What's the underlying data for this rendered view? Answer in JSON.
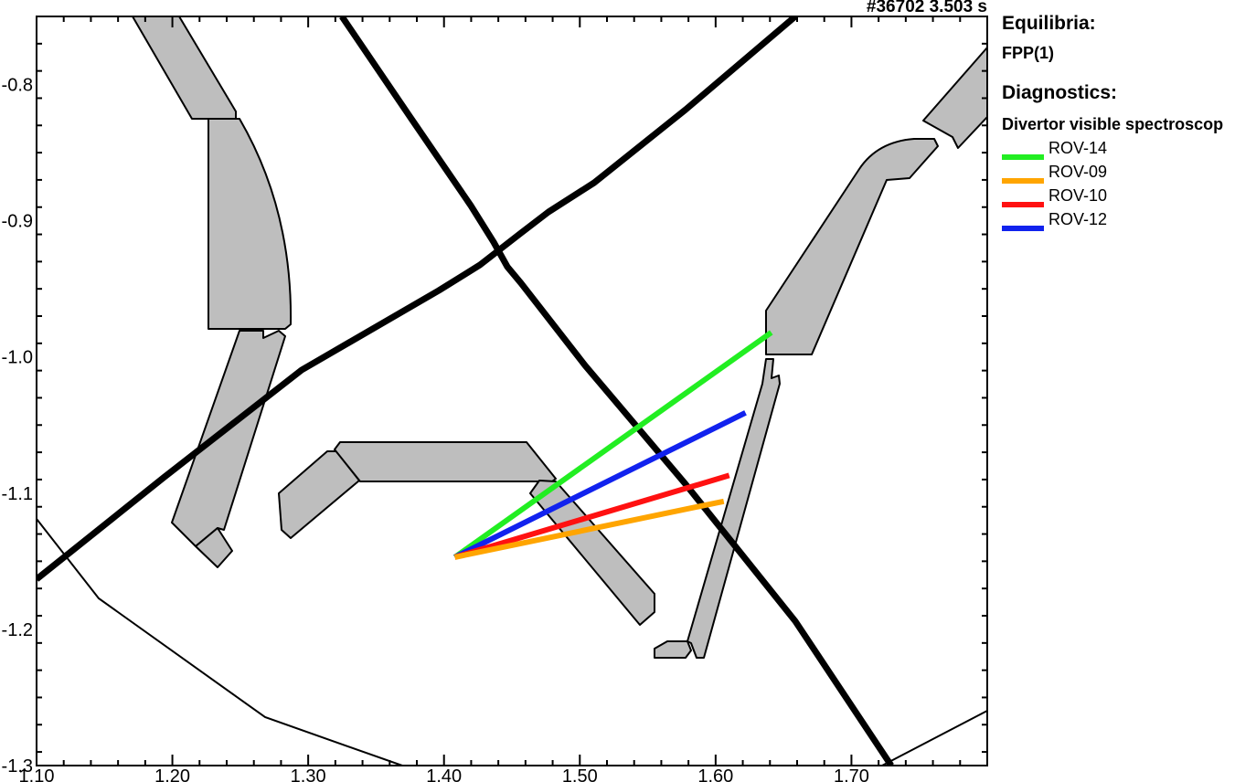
{
  "shot_label": "#36702 3.503 s",
  "legend": {
    "equilibria_heading": "Equilibria:",
    "equilibria_item": "FPP(1)",
    "diagnostics_heading": "Diagnostics:",
    "diagnostic_group": "Divertor visible spectroscop",
    "entries": [
      {
        "label": "ROV-14",
        "color": "#22ee22"
      },
      {
        "label": "ROV-09",
        "color": "#ffa500"
      },
      {
        "label": "ROV-10",
        "color": "#ff1111"
      },
      {
        "label": "ROV-12",
        "color": "#1122ee"
      }
    ]
  },
  "chart_data": {
    "type": "diagram",
    "xlim": [
      1.1,
      1.8
    ],
    "ylim": [
      -1.3,
      -0.75
    ],
    "x_ticks": [
      "1.10",
      "1.20",
      "1.30",
      "1.40",
      "1.50",
      "1.60",
      "1.70"
    ],
    "y_ticks": [
      "-0.8",
      "-0.9",
      "-1.0",
      "-1.1",
      "-1.2",
      "-1.3"
    ],
    "lines_of_sight": [
      {
        "name": "ROV-14",
        "color": "#22ee22",
        "points": [
          [
            1.408,
            -1.147
          ],
          [
            1.641,
            -0.982
          ]
        ]
      },
      {
        "name": "ROV-12",
        "color": "#1122ee",
        "points": [
          [
            1.408,
            -1.147
          ],
          [
            1.622,
            -1.041
          ]
        ]
      },
      {
        "name": "ROV-10",
        "color": "#ff1111",
        "points": [
          [
            1.408,
            -1.147
          ],
          [
            1.61,
            -1.087
          ]
        ]
      },
      {
        "name": "ROV-09",
        "color": "#ffa500",
        "points": [
          [
            1.408,
            -1.147
          ],
          [
            1.606,
            -1.106
          ]
        ]
      }
    ]
  }
}
